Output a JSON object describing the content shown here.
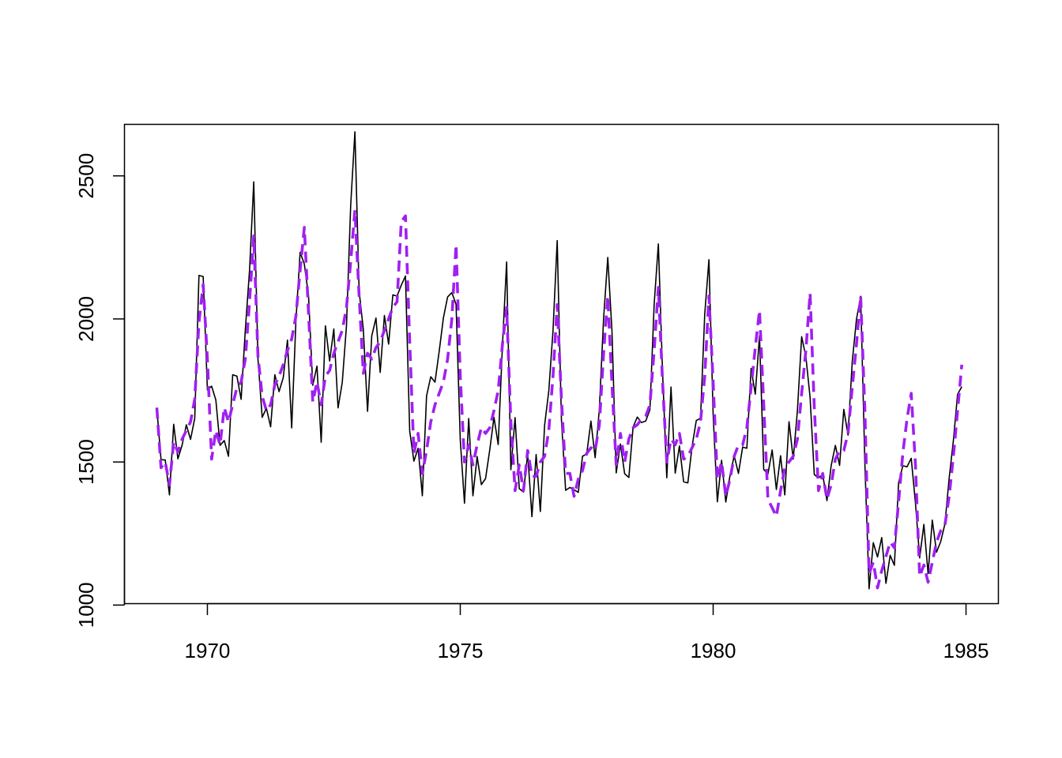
{
  "chart_data": {
    "type": "line",
    "title": "",
    "xlabel": "",
    "ylabel": "",
    "xlim": [
      1968.36,
      1985.64
    ],
    "ylim": [
      1005,
      2680
    ],
    "x_start": 1969,
    "x_step": 0.0833333333,
    "x_ticks": [
      1970,
      1975,
      1980,
      1985
    ],
    "y_ticks": [
      1000,
      1500,
      2000,
      2500
    ],
    "x_tick_labels": [
      "1970",
      "1975",
      "1980",
      "1985"
    ],
    "y_tick_labels": [
      "1000",
      "1500",
      "2000",
      "2500"
    ],
    "grid": false,
    "legend": "none",
    "series": [
      {
        "style": "solid",
        "color": "#000000",
        "values": [
          1687,
          1508,
          1507,
          1385,
          1632,
          1511,
          1559,
          1630,
          1579,
          1653,
          2152,
          2148,
          1752,
          1765,
          1717,
          1558,
          1575,
          1520,
          1805,
          1800,
          1719,
          1962,
          2170,
          2479,
          1860,
          1656,
          1688,
          1623,
          1805,
          1746,
          1795,
          1926,
          1619,
          1992,
          2233,
          2192,
          2080,
          1768,
          1835,
          1569,
          1976,
          1853,
          1965,
          1689,
          1778,
          1976,
          2397,
          2654,
          2097,
          1963,
          1677,
          1941,
          2003,
          1813,
          2012,
          1912,
          2084,
          2080,
          2118,
          2150,
          1608,
          1503,
          1548,
          1382,
          1731,
          1798,
          1779,
          1887,
          2004,
          2077,
          2092,
          2051,
          1577,
          1356,
          1652,
          1382,
          1519,
          1421,
          1442,
          1543,
          1656,
          1561,
          1905,
          2199,
          1473,
          1655,
          1407,
          1395,
          1530,
          1309,
          1526,
          1327,
          1627,
          1748,
          1958,
          2274,
          1648,
          1401,
          1411,
          1403,
          1394,
          1520,
          1528,
          1643,
          1515,
          1685,
          2000,
          2215,
          1956,
          1462,
          1563,
          1459,
          1446,
          1622,
          1657,
          1638,
          1643,
          1683,
          2050,
          2262,
          1813,
          1445,
          1762,
          1461,
          1556,
          1431,
          1427,
          1554,
          1645,
          1653,
          2016,
          2207,
          1665,
          1361,
          1506,
          1360,
          1453,
          1522,
          1460,
          1552,
          1548,
          1827,
          1737,
          1941,
          1474,
          1458,
          1542,
          1404,
          1522,
          1385,
          1641,
          1510,
          1681,
          1938,
          1868,
          1726,
          1456,
          1445,
          1456,
          1365,
          1487,
          1558,
          1488,
          1684,
          1594,
          1850,
          1998,
          2079,
          1494,
          1057,
          1218,
          1168,
          1236,
          1076,
          1174,
          1139,
          1427,
          1487,
          1483,
          1513,
          1357,
          1165,
          1282,
          1110,
          1297,
          1185,
          1222,
          1284,
          1444,
          1575,
          1737,
          1763
        ]
      },
      {
        "style": "dashed",
        "color": "#a020f0",
        "values": [
          1690,
          1480,
          1500,
          1420,
          1570,
          1535,
          1580,
          1610,
          1640,
          1720,
          1990,
          2120,
          1860,
          1510,
          1610,
          1560,
          1690,
          1640,
          1700,
          1760,
          1780,
          1860,
          2060,
          2290,
          1870,
          1730,
          1680,
          1700,
          1770,
          1800,
          1840,
          1890,
          1930,
          2010,
          2170,
          2320,
          2020,
          1710,
          1780,
          1700,
          1800,
          1820,
          1880,
          1920,
          1960,
          2040,
          2200,
          2380,
          2080,
          1810,
          1880,
          1860,
          1900,
          1920,
          1960,
          2000,
          2040,
          2060,
          2340,
          2360,
          1920,
          1530,
          1600,
          1460,
          1540,
          1640,
          1700,
          1740,
          1780,
          1860,
          2000,
          2260,
          1800,
          1500,
          1560,
          1490,
          1560,
          1620,
          1600,
          1620,
          1680,
          1750,
          1910,
          2040,
          1640,
          1400,
          1490,
          1400,
          1540,
          1450,
          1450,
          1500,
          1520,
          1610,
          1800,
          2050,
          1720,
          1460,
          1460,
          1380,
          1440,
          1470,
          1530,
          1550,
          1540,
          1630,
          1880,
          2080,
          1770,
          1490,
          1600,
          1500,
          1580,
          1620,
          1630,
          1650,
          1660,
          1700,
          1890,
          2110,
          1780,
          1500,
          1580,
          1560,
          1600,
          1510,
          1520,
          1550,
          1580,
          1640,
          1800,
          2080,
          1780,
          1440,
          1500,
          1380,
          1440,
          1520,
          1560,
          1560,
          1620,
          1760,
          1900,
          2030,
          1700,
          1370,
          1340,
          1310,
          1400,
          1480,
          1500,
          1520,
          1580,
          1740,
          1890,
          2090,
          1690,
          1400,
          1460,
          1370,
          1420,
          1510,
          1540,
          1540,
          1600,
          1760,
          1910,
          2080,
          1680,
          1110,
          1150,
          1060,
          1120,
          1170,
          1220,
          1200,
          1360,
          1530,
          1650,
          1740,
          1490,
          1100,
          1140,
          1080,
          1150,
          1220,
          1260,
          1280,
          1380,
          1520,
          1680,
          1840
        ]
      }
    ]
  }
}
